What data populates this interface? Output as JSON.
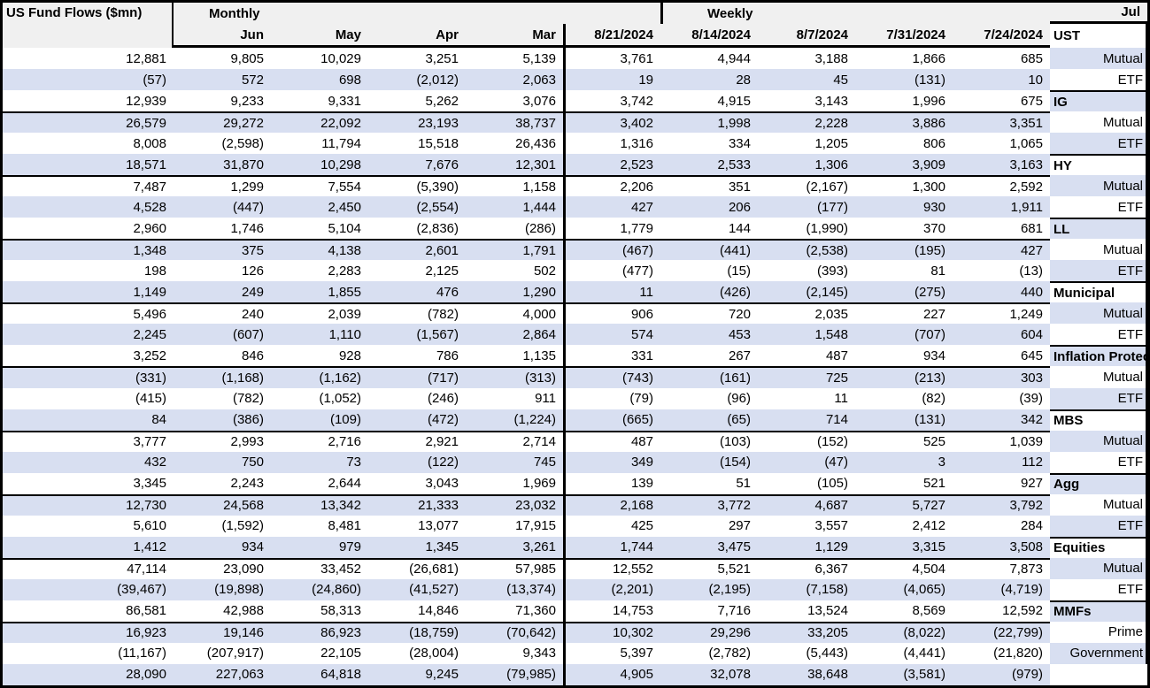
{
  "chart_data": {
    "type": "table",
    "title": "US Fund Flows ($mn)",
    "unit": "$mn",
    "negative_format": "parentheses",
    "sections": [
      {
        "label": "Monthly",
        "columns": [
          "Jul",
          "Jun",
          "May",
          "Apr",
          "Mar"
        ]
      },
      {
        "label": "Weekly",
        "columns": [
          "8/21/2024",
          "8/14/2024",
          "8/7/2024",
          "7/31/2024",
          "7/24/2024"
        ]
      }
    ],
    "groups": [
      {
        "name": "UST",
        "rows": [
          {
            "label": "UST",
            "monthly": [
              "12,881",
              "9,805",
              "10,029",
              "3,251",
              "5,139"
            ],
            "weekly": [
              "3,761",
              "4,944",
              "3,188",
              "1,866",
              "685"
            ]
          },
          {
            "label": "Mutual",
            "monthly": [
              "(57)",
              "572",
              "698",
              "(2,012)",
              "2,063"
            ],
            "weekly": [
              "19",
              "28",
              "45",
              "(131)",
              "10"
            ]
          },
          {
            "label": "ETF",
            "monthly": [
              "12,939",
              "9,233",
              "9,331",
              "5,262",
              "3,076"
            ],
            "weekly": [
              "3,742",
              "4,915",
              "3,143",
              "1,996",
              "675"
            ]
          }
        ]
      },
      {
        "name": "IG",
        "rows": [
          {
            "label": "IG",
            "monthly": [
              "26,579",
              "29,272",
              "22,092",
              "23,193",
              "38,737"
            ],
            "weekly": [
              "3,402",
              "1,998",
              "2,228",
              "3,886",
              "3,351"
            ]
          },
          {
            "label": "Mutual",
            "monthly": [
              "8,008",
              "(2,598)",
              "11,794",
              "15,518",
              "26,436"
            ],
            "weekly": [
              "1,316",
              "334",
              "1,205",
              "806",
              "1,065"
            ]
          },
          {
            "label": "ETF",
            "monthly": [
              "18,571",
              "31,870",
              "10,298",
              "7,676",
              "12,301"
            ],
            "weekly": [
              "2,523",
              "2,533",
              "1,306",
              "3,909",
              "3,163"
            ]
          }
        ]
      },
      {
        "name": "HY",
        "rows": [
          {
            "label": "HY",
            "monthly": [
              "7,487",
              "1,299",
              "7,554",
              "(5,390)",
              "1,158"
            ],
            "weekly": [
              "2,206",
              "351",
              "(2,167)",
              "1,300",
              "2,592"
            ]
          },
          {
            "label": "Mutual",
            "monthly": [
              "4,528",
              "(447)",
              "2,450",
              "(2,554)",
              "1,444"
            ],
            "weekly": [
              "427",
              "206",
              "(177)",
              "930",
              "1,911"
            ]
          },
          {
            "label": "ETF",
            "monthly": [
              "2,960",
              "1,746",
              "5,104",
              "(2,836)",
              "(286)"
            ],
            "weekly": [
              "1,779",
              "144",
              "(1,990)",
              "370",
              "681"
            ]
          }
        ]
      },
      {
        "name": "LL",
        "rows": [
          {
            "label": "LL",
            "monthly": [
              "1,348",
              "375",
              "4,138",
              "2,601",
              "1,791"
            ],
            "weekly": [
              "(467)",
              "(441)",
              "(2,538)",
              "(195)",
              "427"
            ]
          },
          {
            "label": "Mutual",
            "monthly": [
              "198",
              "126",
              "2,283",
              "2,125",
              "502"
            ],
            "weekly": [
              "(477)",
              "(15)",
              "(393)",
              "81",
              "(13)"
            ]
          },
          {
            "label": "ETF",
            "monthly": [
              "1,149",
              "249",
              "1,855",
              "476",
              "1,290"
            ],
            "weekly": [
              "11",
              "(426)",
              "(2,145)",
              "(275)",
              "440"
            ]
          }
        ]
      },
      {
        "name": "Municipal",
        "rows": [
          {
            "label": "Municipal",
            "monthly": [
              "5,496",
              "240",
              "2,039",
              "(782)",
              "4,000"
            ],
            "weekly": [
              "906",
              "720",
              "2,035",
              "227",
              "1,249"
            ]
          },
          {
            "label": "Mutual",
            "monthly": [
              "2,245",
              "(607)",
              "1,110",
              "(1,567)",
              "2,864"
            ],
            "weekly": [
              "574",
              "453",
              "1,548",
              "(707)",
              "604"
            ]
          },
          {
            "label": "ETF",
            "monthly": [
              "3,252",
              "846",
              "928",
              "786",
              "1,135"
            ],
            "weekly": [
              "331",
              "267",
              "487",
              "934",
              "645"
            ]
          }
        ]
      },
      {
        "name": "Inflation Protected",
        "rows": [
          {
            "label": "Inflation Protected",
            "monthly": [
              "(331)",
              "(1,168)",
              "(1,162)",
              "(717)",
              "(313)"
            ],
            "weekly": [
              "(743)",
              "(161)",
              "725",
              "(213)",
              "303"
            ]
          },
          {
            "label": "Mutual",
            "monthly": [
              "(415)",
              "(782)",
              "(1,052)",
              "(246)",
              "911"
            ],
            "weekly": [
              "(79)",
              "(96)",
              "11",
              "(82)",
              "(39)"
            ]
          },
          {
            "label": "ETF",
            "monthly": [
              "84",
              "(386)",
              "(109)",
              "(472)",
              "(1,224)"
            ],
            "weekly": [
              "(665)",
              "(65)",
              "714",
              "(131)",
              "342"
            ]
          }
        ]
      },
      {
        "name": "MBS",
        "rows": [
          {
            "label": "MBS",
            "monthly": [
              "3,777",
              "2,993",
              "2,716",
              "2,921",
              "2,714"
            ],
            "weekly": [
              "487",
              "(103)",
              "(152)",
              "525",
              "1,039"
            ]
          },
          {
            "label": "Mutual",
            "monthly": [
              "432",
              "750",
              "73",
              "(122)",
              "745"
            ],
            "weekly": [
              "349",
              "(154)",
              "(47)",
              "3",
              "112"
            ]
          },
          {
            "label": "ETF",
            "monthly": [
              "3,345",
              "2,243",
              "2,644",
              "3,043",
              "1,969"
            ],
            "weekly": [
              "139",
              "51",
              "(105)",
              "521",
              "927"
            ]
          }
        ]
      },
      {
        "name": "Agg",
        "rows": [
          {
            "label": "Agg",
            "monthly": [
              "12,730",
              "24,568",
              "13,342",
              "21,333",
              "23,032"
            ],
            "weekly": [
              "2,168",
              "3,772",
              "4,687",
              "5,727",
              "3,792"
            ]
          },
          {
            "label": "Mutual",
            "monthly": [
              "5,610",
              "(1,592)",
              "8,481",
              "13,077",
              "17,915"
            ],
            "weekly": [
              "425",
              "297",
              "3,557",
              "2,412",
              "284"
            ]
          },
          {
            "label": "ETF",
            "monthly": [
              "1,412",
              "934",
              "979",
              "1,345",
              "3,261"
            ],
            "weekly": [
              "1,744",
              "3,475",
              "1,129",
              "3,315",
              "3,508"
            ]
          }
        ]
      },
      {
        "name": "Equities",
        "rows": [
          {
            "label": "Equities",
            "monthly": [
              "47,114",
              "23,090",
              "33,452",
              "(26,681)",
              "57,985"
            ],
            "weekly": [
              "12,552",
              "5,521",
              "6,367",
              "4,504",
              "7,873"
            ]
          },
          {
            "label": "Mutual",
            "monthly": [
              "(39,467)",
              "(19,898)",
              "(24,860)",
              "(41,527)",
              "(13,374)"
            ],
            "weekly": [
              "(2,201)",
              "(2,195)",
              "(7,158)",
              "(4,065)",
              "(4,719)"
            ]
          },
          {
            "label": "ETF",
            "monthly": [
              "86,581",
              "42,988",
              "58,313",
              "14,846",
              "71,360"
            ],
            "weekly": [
              "14,753",
              "7,716",
              "13,524",
              "8,569",
              "12,592"
            ]
          }
        ]
      },
      {
        "name": "MMFs",
        "rows": [
          {
            "label": "MMFs",
            "monthly": [
              "16,923",
              "19,146",
              "86,923",
              "(18,759)",
              "(70,642)"
            ],
            "weekly": [
              "10,302",
              "29,296",
              "33,205",
              "(8,022)",
              "(22,799)"
            ]
          },
          {
            "label": "Prime",
            "monthly": [
              "(11,167)",
              "(207,917)",
              "22,105",
              "(28,004)",
              "9,343"
            ],
            "weekly": [
              "5,397",
              "(2,782)",
              "(5,443)",
              "(4,441)",
              "(21,820)"
            ]
          },
          {
            "label": "Government",
            "monthly": [
              "28,090",
              "227,063",
              "64,818",
              "9,245",
              "(79,985)"
            ],
            "weekly": [
              "4,905",
              "32,078",
              "38,648",
              "(3,581)",
              "(979)"
            ]
          }
        ]
      }
    ],
    "styles": {
      "header_bg": "#f0f0f0",
      "alt_row_bg": "#d8dff1",
      "border_color": "#000000",
      "text_color": "#000000"
    }
  }
}
